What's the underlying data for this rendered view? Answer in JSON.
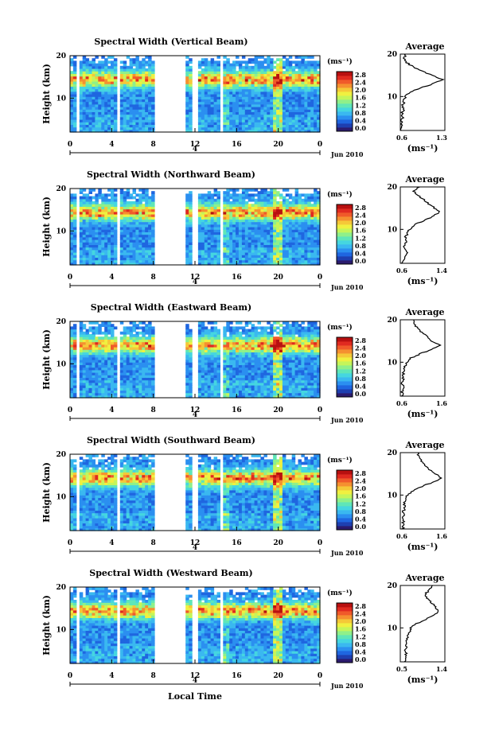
{
  "figure": {
    "xlabel": "Local Time",
    "date_label": "Jun 2010",
    "day_label": "4",
    "ylabel": "Height (km)",
    "unit_label": "(ms⁻¹)",
    "avg_title": "Average",
    "avg_xunit": "(ms⁻¹)"
  },
  "colorbar": {
    "ticks": [
      "2.8",
      "2.4",
      "2.0",
      "1.6",
      "1.2",
      "0.8",
      "0.4",
      "0.0"
    ],
    "colors": [
      "#2b1b6e",
      "#1e3fb0",
      "#1f66e0",
      "#2b8ff0",
      "#3ab8f0",
      "#45d6e0",
      "#5fe6b8",
      "#8ff08a",
      "#c5f55a",
      "#f0f040",
      "#f5c838",
      "#f59030",
      "#f05a2a",
      "#e02a20",
      "#b81010"
    ]
  },
  "chart_data": [
    {
      "type": "heatmap",
      "title": "Spectral Width (Vertical Beam)",
      "x_ticks": [
        "0",
        "4",
        "8",
        "12",
        "16",
        "20",
        "0"
      ],
      "y_ticks": [
        "20",
        "10"
      ],
      "xlim": [
        0,
        24
      ],
      "ylim": [
        2,
        20
      ],
      "avg": {
        "xticks": [
          "0.6",
          "1.3"
        ],
        "xlim": [
          0.6,
          1.3
        ],
        "profile": [
          [
            2,
            0.62
          ],
          [
            3,
            0.63
          ],
          [
            4,
            0.62
          ],
          [
            5,
            0.64
          ],
          [
            6,
            0.63
          ],
          [
            7,
            0.65
          ],
          [
            8,
            0.64
          ],
          [
            9,
            0.66
          ],
          [
            10,
            0.68
          ],
          [
            11,
            0.74
          ],
          [
            12,
            0.9
          ],
          [
            13,
            1.12
          ],
          [
            14,
            1.26
          ],
          [
            15,
            1.1
          ],
          [
            16,
            0.95
          ],
          [
            17,
            0.8
          ],
          [
            18,
            0.7
          ],
          [
            19,
            0.66
          ],
          [
            20,
            0.68
          ]
        ]
      }
    },
    {
      "type": "heatmap",
      "title": "Spectral Width (Northward Beam)",
      "x_ticks": [
        "0",
        "4",
        "8",
        "12",
        "16",
        "20",
        "0"
      ],
      "y_ticks": [
        "20",
        "10"
      ],
      "xlim": [
        0,
        24
      ],
      "ylim": [
        2,
        20
      ],
      "avg": {
        "xticks": [
          "0.6",
          "1.4"
        ],
        "xlim": [
          0.6,
          1.4
        ],
        "profile": [
          [
            2,
            0.64
          ],
          [
            3,
            0.66
          ],
          [
            4,
            0.72
          ],
          [
            5,
            0.7
          ],
          [
            6,
            0.68
          ],
          [
            7,
            0.7
          ],
          [
            8,
            0.69
          ],
          [
            9,
            0.72
          ],
          [
            10,
            0.76
          ],
          [
            11,
            0.85
          ],
          [
            12,
            1.0
          ],
          [
            13,
            1.18
          ],
          [
            14,
            1.3
          ],
          [
            15,
            1.22
          ],
          [
            16,
            1.1
          ],
          [
            17,
            1.02
          ],
          [
            18,
            0.92
          ],
          [
            19,
            0.85
          ],
          [
            20,
            0.95
          ]
        ]
      }
    },
    {
      "type": "heatmap",
      "title": "Spectral Width (Eastward Beam)",
      "x_ticks": [
        "0",
        "4",
        "8",
        "12",
        "16",
        "20",
        "0"
      ],
      "y_ticks": [
        "20",
        "10"
      ],
      "xlim": [
        0,
        24
      ],
      "ylim": [
        2,
        20
      ],
      "avg": {
        "xticks": [
          "0.6",
          "1.6"
        ],
        "xlim": [
          0.6,
          1.6
        ],
        "profile": [
          [
            2,
            0.65
          ],
          [
            3,
            0.64
          ],
          [
            4,
            0.66
          ],
          [
            5,
            0.65
          ],
          [
            6,
            0.67
          ],
          [
            7,
            0.66
          ],
          [
            8,
            0.68
          ],
          [
            9,
            0.7
          ],
          [
            10,
            0.74
          ],
          [
            11,
            0.84
          ],
          [
            12,
            1.05
          ],
          [
            13,
            1.3
          ],
          [
            14,
            1.5
          ],
          [
            15,
            1.32
          ],
          [
            16,
            1.2
          ],
          [
            17,
            1.08
          ],
          [
            18,
            0.98
          ],
          [
            19,
            0.92
          ],
          [
            20,
            0.9
          ]
        ]
      }
    },
    {
      "type": "heatmap",
      "title": "Spectral Width (Southward Beam)",
      "x_ticks": [
        "0",
        "4",
        "8",
        "12",
        "16",
        "20",
        "0"
      ],
      "y_ticks": [
        "20",
        "10"
      ],
      "xlim": [
        0,
        24
      ],
      "ylim": [
        2,
        20
      ],
      "avg": {
        "xticks": [
          "0.6",
          "1.6"
        ],
        "xlim": [
          0.6,
          1.6
        ],
        "profile": [
          [
            2,
            0.65
          ],
          [
            3,
            0.67
          ],
          [
            4,
            0.66
          ],
          [
            5,
            0.68
          ],
          [
            6,
            0.67
          ],
          [
            7,
            0.69
          ],
          [
            8,
            0.7
          ],
          [
            9,
            0.72
          ],
          [
            10,
            0.76
          ],
          [
            11,
            0.88
          ],
          [
            12,
            1.08
          ],
          [
            13,
            1.32
          ],
          [
            14,
            1.52
          ],
          [
            15,
            1.38
          ],
          [
            16,
            1.25
          ],
          [
            17,
            1.15
          ],
          [
            18,
            1.08
          ],
          [
            19,
            1.02
          ],
          [
            20,
            1.0
          ]
        ]
      }
    },
    {
      "type": "heatmap",
      "title": "Spectral Width (Westward Beam)",
      "x_ticks": [
        "0",
        "4",
        "8",
        "12",
        "16",
        "20",
        "0"
      ],
      "y_ticks": [
        "20",
        "10"
      ],
      "xlim": [
        0,
        24
      ],
      "ylim": [
        2,
        20
      ],
      "avg": {
        "xticks": [
          "0.5",
          "1.4"
        ],
        "xlim": [
          0.5,
          1.4
        ],
        "profile": [
          [
            2,
            0.58
          ],
          [
            3,
            0.6
          ],
          [
            4,
            0.62
          ],
          [
            5,
            0.6
          ],
          [
            6,
            0.63
          ],
          [
            7,
            0.62
          ],
          [
            8,
            0.64
          ],
          [
            9,
            0.68
          ],
          [
            10,
            0.72
          ],
          [
            11,
            0.82
          ],
          [
            12,
            1.0
          ],
          [
            13,
            1.18
          ],
          [
            14,
            1.28
          ],
          [
            15,
            1.2
          ],
          [
            16,
            1.12
          ],
          [
            17,
            1.05
          ],
          [
            18,
            1.0
          ],
          [
            19,
            1.1
          ],
          [
            20,
            1.15
          ]
        ]
      }
    }
  ]
}
